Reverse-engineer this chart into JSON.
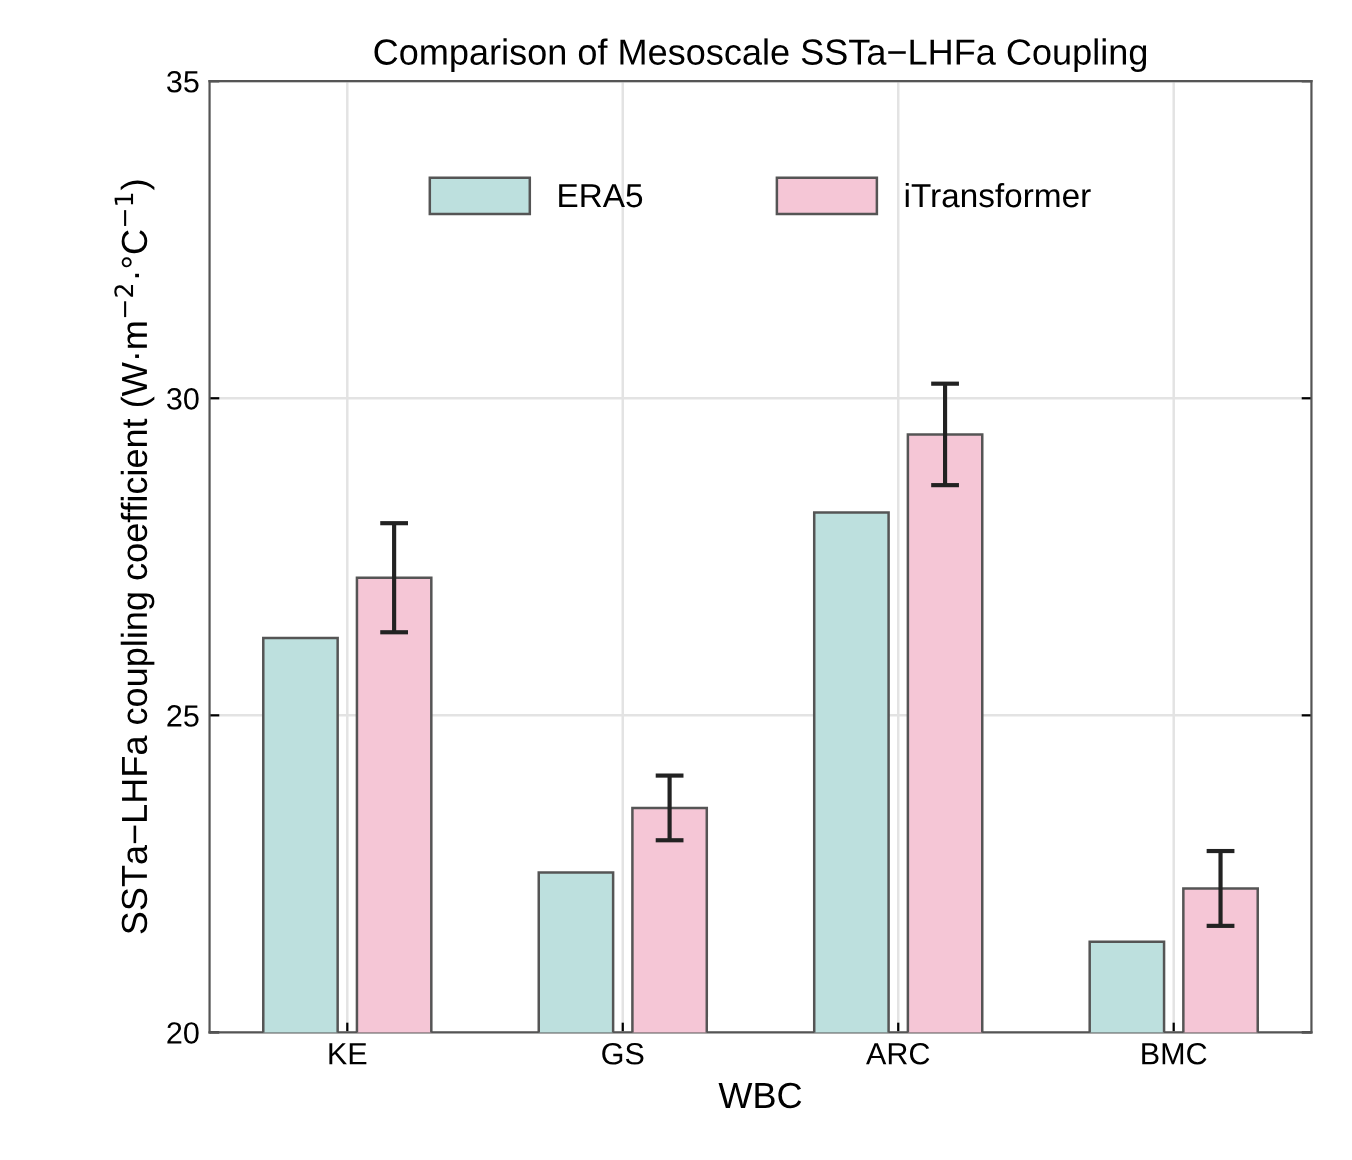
{
  "chart_data": {
    "type": "bar",
    "title": "Comparison of Mesoscale SSTa−LHFa Coupling",
    "xlabel": "WBC",
    "ylabel": "SSTa−LHFa coupling coefficient (W·m$^{−2}$·°C$^{−1}$)",
    "categories": [
      "KE",
      "GS",
      "ARC",
      "BMC"
    ],
    "series": [
      {
        "name": "ERA5",
        "color": "#bde0de",
        "values": [
          26.22,
          22.52,
          28.2,
          21.43
        ]
      },
      {
        "name": "iTransformer",
        "color": "#f5c6d6",
        "values": [
          27.17,
          23.54,
          29.43,
          22.27
        ],
        "errors": [
          0.86,
          0.51,
          0.8,
          0.59
        ]
      }
    ],
    "ylim": [
      20,
      35
    ],
    "yticks": [
      20,
      25,
      30,
      35
    ],
    "grid": true,
    "legend": "top"
  }
}
